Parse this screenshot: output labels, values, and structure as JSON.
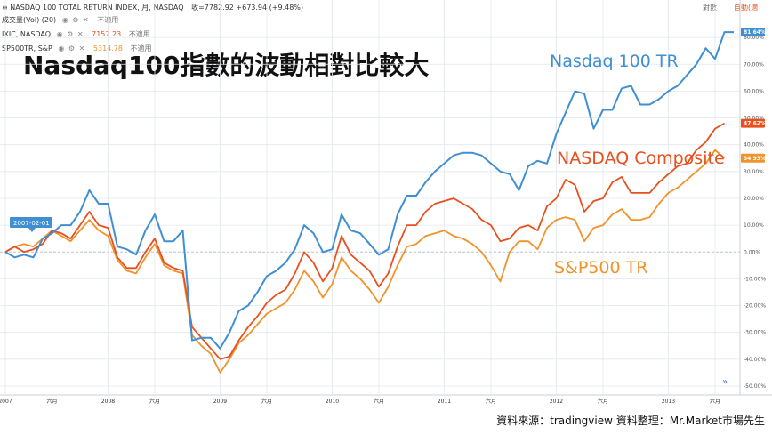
{
  "header": {
    "main_symbol": "NASDAQ 100 TOTAL RETURN INDEX, 月, NASDAQ",
    "main_change": "收=7782.92 +673.94 (+9.48%)",
    "volume_label": "成交量(Vol) (20)",
    "not_applicable": "不適用",
    "rows": [
      {
        "symbol": "IXIC, NASDAQ",
        "value": "7157.23",
        "color": "#e8501e"
      },
      {
        "symbol": "SP500TR, S&P",
        "value": "5314.78",
        "color": "#f0932a"
      }
    ],
    "log_button": "對數",
    "auto_button": "自動(適"
  },
  "headline": "Nasdaq100指數的波動相對比較大",
  "source_note": "資料來源：tradingview 資料整理：Mr.Market市場先生",
  "date_marker": "2007-02-01",
  "colors": {
    "ndx": "#3f8fd2",
    "comp": "#e8501e",
    "spx": "#f0932a"
  },
  "chart_data": {
    "type": "line",
    "ylabel_unit": "%",
    "ylim": [
      -52,
      88
    ],
    "yticks": [
      -50,
      -40,
      -30,
      -20,
      -10,
      0,
      10,
      20,
      30,
      40,
      50,
      60,
      70,
      80
    ],
    "ytick_labels": [
      "-50.00%",
      "-40.00%",
      "-30.00%",
      "-20.00%",
      "-10.00%",
      "0.00%",
      "10.00%",
      "20.00%",
      "30.00%",
      "40.00%",
      "50.00%",
      "60.00%",
      "70.00%",
      "80.00%"
    ],
    "xticks": [
      {
        "label": "2007",
        "x": 0
      },
      {
        "label": "六月",
        "x": 5
      },
      {
        "label": "2008",
        "x": 11
      },
      {
        "label": "六月",
        "x": 16
      },
      {
        "label": "2009",
        "x": 23
      },
      {
        "label": "六月",
        "x": 28
      },
      {
        "label": "2010",
        "x": 35
      },
      {
        "label": "六月",
        "x": 40
      },
      {
        "label": "2011",
        "x": 47
      },
      {
        "label": "六月",
        "x": 52
      },
      {
        "label": "2012",
        "x": 59
      },
      {
        "label": "六月",
        "x": 64
      },
      {
        "label": "2013",
        "x": 71
      },
      {
        "label": "六月",
        "x": 76
      }
    ],
    "grid": true,
    "series": [
      {
        "key": "ndx",
        "name": "Nasdaq 100 TR",
        "last_label": "81.64%",
        "values": [
          0,
          -2,
          -1,
          -2,
          5,
          7,
          10,
          10,
          15,
          23,
          18,
          18,
          2,
          1,
          -1,
          8,
          14,
          4,
          4,
          8,
          -33,
          -32,
          -32,
          -36,
          -30,
          -22,
          -20,
          -15,
          -9,
          -7,
          -4,
          1,
          10,
          7,
          0,
          1,
          14,
          8,
          7,
          3,
          -1,
          1,
          14,
          21,
          21,
          26,
          30,
          33,
          36,
          37,
          37,
          36,
          33,
          30,
          29,
          23,
          32,
          34,
          33,
          44,
          52,
          60,
          59,
          46,
          53,
          53,
          61,
          62,
          55,
          55,
          57,
          60,
          62,
          66,
          70,
          76,
          72,
          82,
          82
        ]
      },
      {
        "key": "comp",
        "name": "NASDAQ Composite",
        "last_label": "47.62%",
        "values": [
          0,
          2,
          0,
          1,
          3,
          8,
          7,
          5,
          10,
          15,
          10,
          9,
          -2,
          -6,
          -6,
          0,
          5,
          -4,
          -6,
          -7,
          -28,
          -32,
          -36,
          -40,
          -39,
          -33,
          -28,
          -24,
          -19,
          -16,
          -14,
          -8,
          0,
          -4,
          -11,
          -6,
          6,
          -1,
          -4,
          -7,
          -13,
          -8,
          2,
          10,
          10,
          15,
          18,
          19,
          20,
          18,
          16,
          12,
          10,
          4,
          5,
          9,
          10,
          8,
          17,
          20,
          27,
          25,
          15,
          19,
          20,
          26,
          28,
          22,
          22,
          22,
          26,
          29,
          32,
          33,
          38,
          41,
          46,
          48
        ]
      },
      {
        "key": "spx",
        "name": "S&P500 TR",
        "last_label": "34.93%",
        "values": [
          0,
          2,
          3,
          2,
          5,
          8,
          6,
          4,
          8,
          12,
          8,
          6,
          -3,
          -7,
          -8,
          -2,
          3,
          -5,
          -7,
          -8,
          -31,
          -35,
          -38,
          -45,
          -40,
          -34,
          -31,
          -27,
          -23,
          -21,
          -19,
          -14,
          -7,
          -11,
          -17,
          -12,
          -2,
          -7,
          -10,
          -14,
          -19,
          -13,
          -5,
          2,
          3,
          6,
          7,
          8,
          6,
          5,
          3,
          0,
          -5,
          -11,
          0,
          4,
          4,
          1,
          9,
          12,
          13,
          12,
          4,
          9,
          10,
          14,
          16,
          12,
          12,
          13,
          18,
          22,
          24,
          27,
          30,
          33,
          38,
          35
        ]
      }
    ]
  }
}
